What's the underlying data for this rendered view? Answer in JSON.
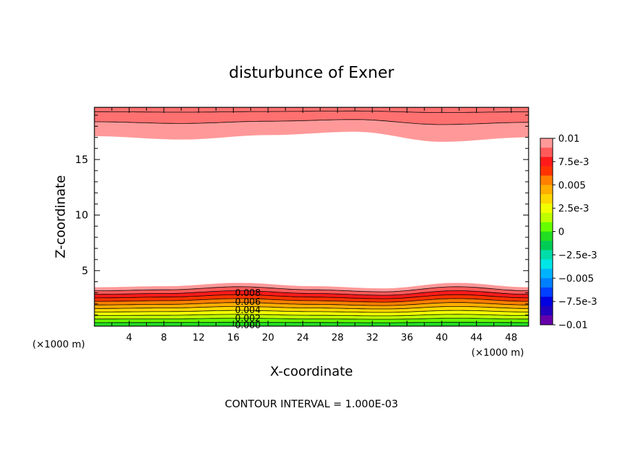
{
  "chart_data": {
    "type": "contour",
    "title": "disturbunce of Exner",
    "xlabel": "X-coordinate",
    "ylabel": "Z-coordinate",
    "x_unit_label": "(×1000 m)",
    "x_unit_label_right": "(×1000 m)",
    "xlim": [
      0,
      50
    ],
    "ylim": [
      0,
      19.7
    ],
    "x_ticks": [
      4,
      8,
      12,
      16,
      20,
      24,
      28,
      32,
      36,
      40,
      44,
      48
    ],
    "y_ticks": [
      5,
      10,
      15
    ],
    "footer": "CONTOUR INTERVAL = 1.000E-03",
    "contour_interval": 0.001,
    "contour_labels": [
      "0.008",
      "0.006",
      "0.004",
      "0.002",
      "0.000"
    ],
    "colorbar": {
      "ticks": [
        "0.01",
        "7.5e-3",
        "0.005",
        "2.5e-3",
        "0",
        "−2.5e-3",
        "−0.005",
        "−7.5e-3",
        "−0.01"
      ],
      "colors_top_to_bottom": [
        "#ff9999",
        "#ff5a5a",
        "#ff1a1a",
        "#ff3300",
        "#ff7f00",
        "#ffae00",
        "#ffd700",
        "#f2ff00",
        "#bfff00",
        "#66ff00",
        "#22dd22",
        "#00cc55",
        "#00ddaa",
        "#00e6e6",
        "#00b3ff",
        "#0080ff",
        "#0040ff",
        "#0000e0",
        "#2200c0",
        "#6600aa"
      ]
    },
    "bottom_layer_top_z": [
      3.5,
      3.6,
      3.9,
      3.6,
      3.4,
      3.9,
      3.5
    ],
    "top_layer_bottom_z": [
      17.1,
      16.8,
      17.2,
      17.5,
      16.6,
      17.0
    ],
    "bottom_band_colors": [
      "#ff9999",
      "#ff5a5a",
      "#ff1a1a",
      "#ff3300",
      "#ff7f00",
      "#ffae00",
      "#ffd700",
      "#f2ff00",
      "#bfff00",
      "#66ff00",
      "#22dd22"
    ],
    "top_band_colors": [
      "#ff9999",
      "#ff7070"
    ]
  }
}
